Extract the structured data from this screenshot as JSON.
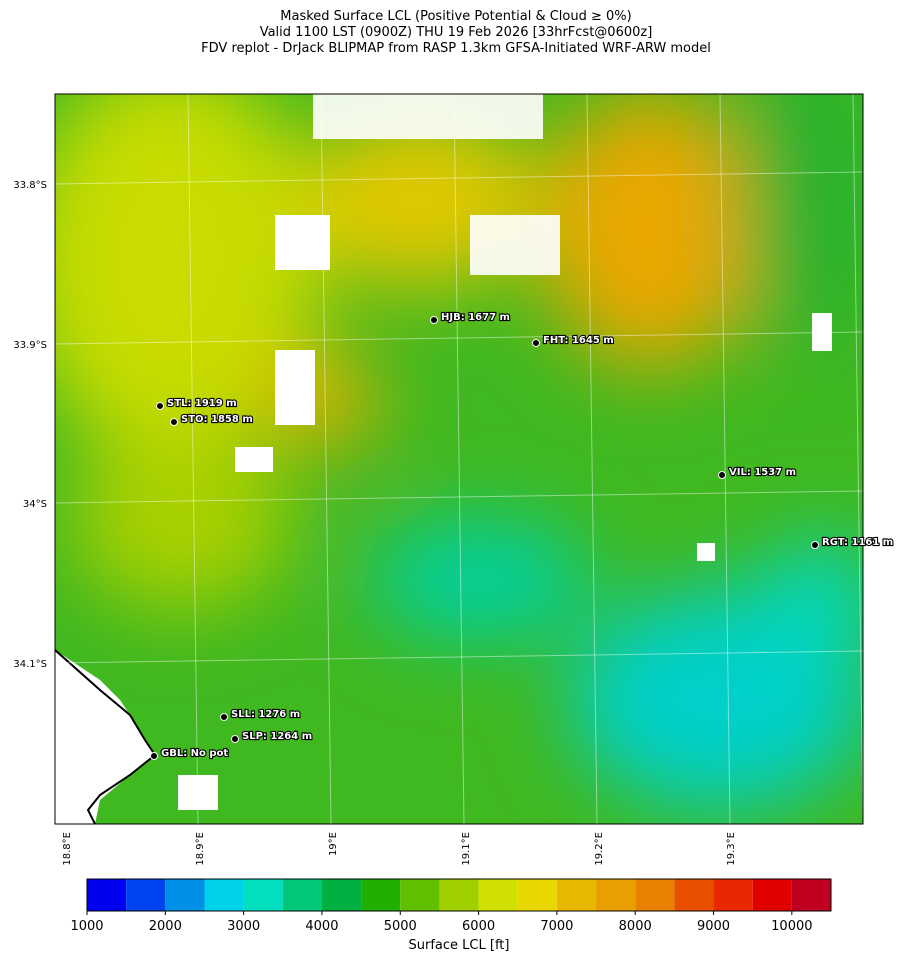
{
  "header": {
    "title_lines": [
      "Masked Surface LCL (Positive Potential & Cloud ≥ 0%)",
      "Valid 1100 LST (0900Z) THU 19 Feb 2026 [33hrFcst@0600z]",
      "FDV replot - DrJack BLIPMAP from RASP 1.3km GFSA-Initiated WRF-ARW model"
    ]
  },
  "map": {
    "lat_labels": [
      "33.8°S",
      "33.9°S",
      "34°S",
      "34.1°S"
    ],
    "lon_labels": [
      "18.8°E",
      "18.9°E",
      "19°E",
      "19.1°E",
      "19.2°E",
      "19.3°E"
    ],
    "stations": [
      "HJB: 1677 m",
      "FHT: 1645 m",
      "STL: 1919 m",
      "STO: 1858 m",
      "VIL: 1537 m",
      "RGT: 1161 m",
      "SLL: 1276 m",
      "SLP: 1264 m",
      "GBL: No pot"
    ]
  },
  "colorbar": {
    "label": "Surface LCL [ft]",
    "bounds": [
      1000,
      1500,
      2000,
      2500,
      3000,
      3500,
      4000,
      4500,
      5000,
      5500,
      6000,
      6500,
      7000,
      7500,
      8000,
      8500,
      9000,
      9500,
      10000,
      10500
    ],
    "colors": [
      "#0000f0",
      "#0044f0",
      "#0090e8",
      "#00d0e8",
      "#00e0c0",
      "#00c878",
      "#00b040",
      "#20b000",
      "#60c000",
      "#a0d000",
      "#d0e000",
      "#e8d800",
      "#e8b800",
      "#e8a000",
      "#e88000",
      "#e85000",
      "#e82800",
      "#e00000",
      "#c00020"
    ],
    "ticks": [
      1000,
      2000,
      3000,
      4000,
      5000,
      6000,
      7000,
      8000,
      9000,
      10000
    ]
  }
}
